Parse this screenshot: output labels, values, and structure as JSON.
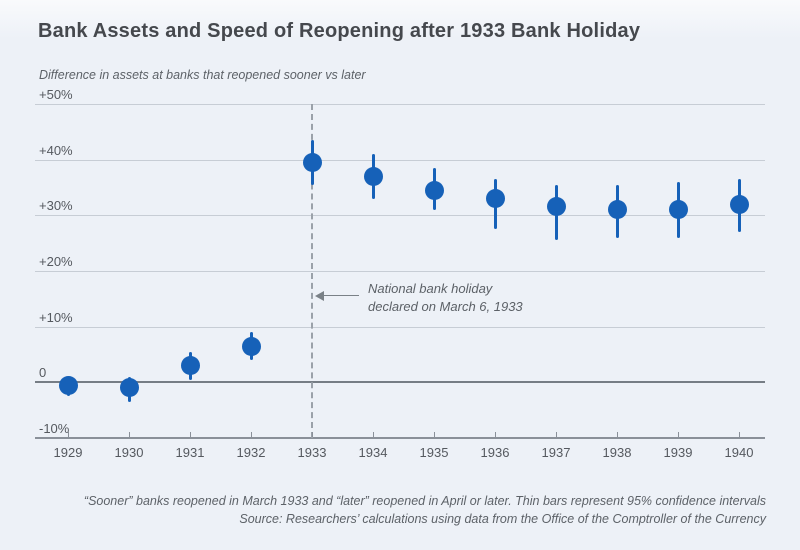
{
  "page": {
    "title": "Bank Assets and Speed of Reopening after 1933 Bank Holiday",
    "footnote": "“Sooner” banks reopened in March 1933 and “later” reopened in April or later. Thin bars represent 95% confidence intervals",
    "source": "Source: Researchers’ calculations using data from the Office of the Comptroller of the Currency"
  },
  "colors": {
    "point": "#1661b8",
    "background": "#edf1f7",
    "gridline": "#c7cdd5",
    "zero_line": "#767d85",
    "axis_line": "#8a9099",
    "dashed_line": "#9aa1a9",
    "title_text": "#45484d",
    "body_text": "#5c6167"
  },
  "chart_data": {
    "type": "scatter",
    "title": "Bank Assets and Speed of Reopening after 1933 Bank Holiday",
    "subtitle": "Difference in assets at banks that reopened sooner vs later",
    "x": [
      1929,
      1930,
      1931,
      1932,
      1933,
      1934,
      1935,
      1936,
      1937,
      1938,
      1939,
      1940
    ],
    "values": [
      -0.5,
      -1,
      3,
      6.5,
      39.5,
      37,
      34.5,
      33,
      31.5,
      31,
      31,
      32
    ],
    "ci_low": [
      -2.5,
      -3.5,
      0.5,
      4,
      35.5,
      33,
      31,
      27.5,
      25.5,
      26,
      26,
      27
    ],
    "ci_high": [
      1,
      1,
      5.5,
      9,
      43.5,
      41,
      38.5,
      36.5,
      35.5,
      35.5,
      36,
      36.5
    ],
    "ylim": [
      -10,
      50
    ],
    "yticks": [
      {
        "value": 50,
        "label": "+50%"
      },
      {
        "value": 40,
        "label": "+40%"
      },
      {
        "value": 30,
        "label": "+30%"
      },
      {
        "value": 20,
        "label": "+20%"
      },
      {
        "value": 10,
        "label": "+10%"
      },
      {
        "value": 0,
        "label": "0"
      },
      {
        "value": -10,
        "label": "-10%"
      }
    ],
    "grid": "horizontal",
    "legend": "none",
    "event_line_x": 1933,
    "annotation": {
      "line1": "National bank holiday",
      "line2": "declared on March 6, 1933"
    },
    "ci_note": "Thin bars represent 95% confidence intervals"
  }
}
